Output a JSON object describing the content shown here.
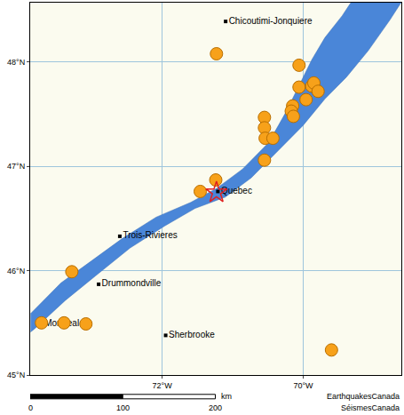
{
  "chart_data": {
    "type": "scatter",
    "xlim": [
      -73.87,
      -68.61
    ],
    "ylim": [
      45,
      48.57
    ],
    "xticks": [
      {
        "value": -72,
        "label": "72°W"
      },
      {
        "value": -70,
        "label": "70°W"
      }
    ],
    "yticks": [
      {
        "value": 45,
        "label": "45°N"
      },
      {
        "value": 46,
        "label": "46°N"
      },
      {
        "value": 47,
        "label": "47°N"
      },
      {
        "value": 48,
        "label": "48°N"
      }
    ],
    "grid": true,
    "water": {
      "color": "#4a86d8",
      "x": [
        -73.865,
        -73.436,
        -73.006,
        -72.577,
        -72.086,
        -71.595,
        -71.227,
        -70.859,
        -70.491,
        -70.245,
        -70.061,
        -69.877,
        -69.693,
        -69.448,
        -69.325,
        -68.613,
        -68.773,
        -69.08,
        -69.387,
        -69.693,
        -70.0,
        -70.368,
        -70.736,
        -71.104,
        -71.534,
        -71.963,
        -72.454,
        -72.945,
        -73.374,
        -73.804,
        -73.865
      ],
      "y": [
        45.588,
        45.882,
        46.092,
        46.303,
        46.513,
        46.655,
        46.79,
        46.975,
        47.227,
        47.521,
        47.773,
        48.025,
        48.235,
        48.445,
        48.571,
        48.571,
        48.403,
        48.109,
        47.857,
        47.647,
        47.395,
        47.143,
        46.891,
        46.706,
        46.597,
        46.429,
        46.218,
        45.95,
        45.714,
        45.445,
        45.412
      ]
    },
    "cities": [
      {
        "label": "Chicoutimi-Jonquiere",
        "x": -71.1,
        "y": 48.39
      },
      {
        "label": "Quebec",
        "x": -71.21,
        "y": 46.76
      },
      {
        "label": "Trois-Rivieres",
        "x": -72.6,
        "y": 46.33
      },
      {
        "label": "Drummondville",
        "x": -72.9,
        "y": 45.87
      },
      {
        "label": "Montreal",
        "x": -73.71,
        "y": 45.49
      },
      {
        "label": "Sherbrooke",
        "x": -71.95,
        "y": 45.38
      }
    ],
    "series": [
      {
        "color": "#f7a11a",
        "marker": "circle",
        "x": [
          -71.23,
          -70.06,
          -70.06,
          -69.88,
          -69.85,
          -69.79,
          -69.96,
          -70.15,
          -70.17,
          -70.14,
          -70.55,
          -70.55,
          -70.54,
          -70.43,
          -70.55,
          -71.24,
          -71.46,
          -73.28,
          -73.71,
          -73.39,
          -73.08,
          -69.6
        ],
        "y": [
          48.08,
          47.97,
          47.76,
          47.77,
          47.8,
          47.72,
          47.64,
          47.58,
          47.53,
          47.48,
          47.47,
          47.37,
          47.27,
          47.27,
          47.06,
          46.87,
          46.76,
          45.99,
          45.5,
          45.5,
          45.49,
          45.24
        ]
      }
    ],
    "epicenter": {
      "x": -71.23,
      "y": 46.75,
      "color": "#e02020",
      "marker": "star-open"
    },
    "scale_bar": {
      "ticks": [
        0,
        100,
        200
      ],
      "unit": "km"
    },
    "credits": [
      "EarthquakesCanada",
      "SéismesCanada"
    ]
  }
}
